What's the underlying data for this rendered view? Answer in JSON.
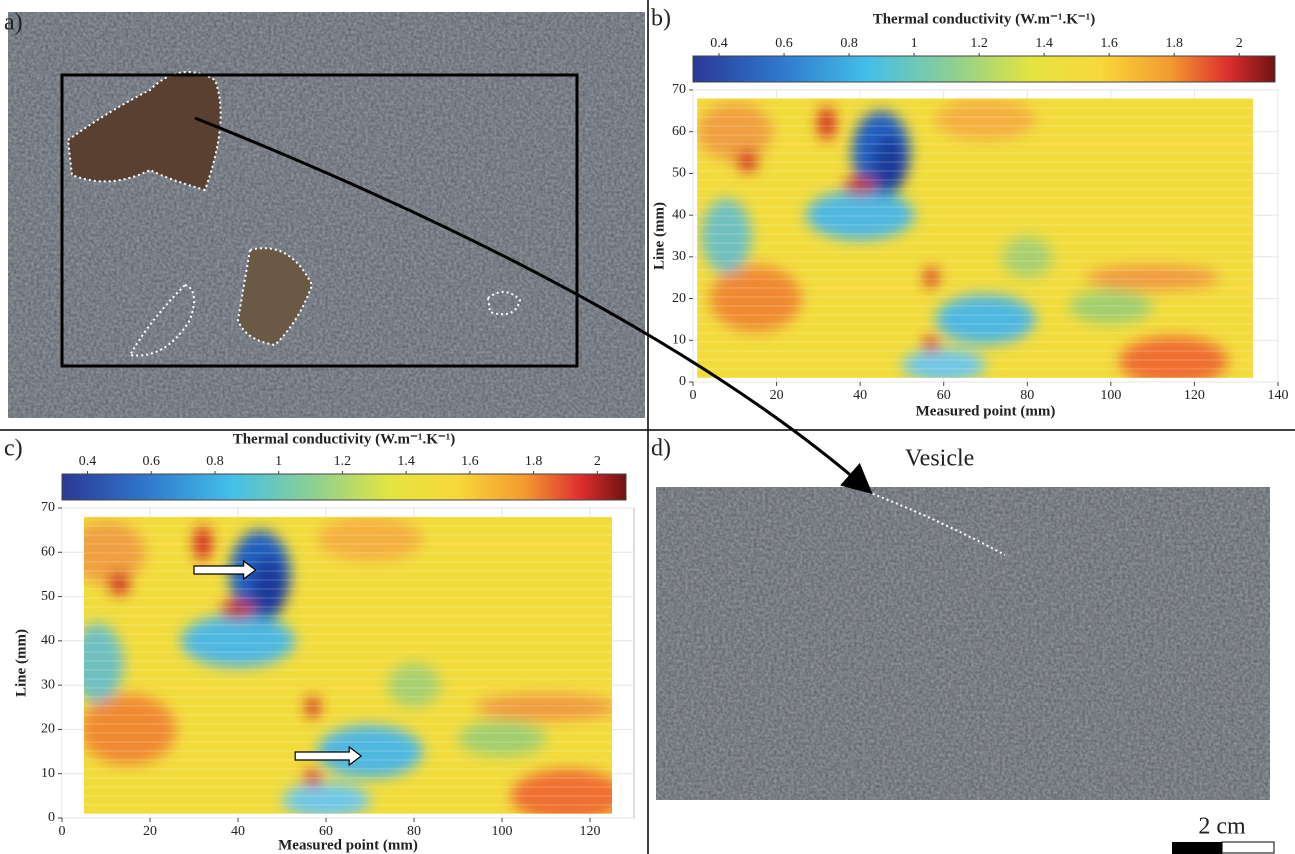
{
  "panels": [
    "a)",
    "b)",
    "c)",
    "d)"
  ],
  "annotations": {
    "vesicle": "Vesicle",
    "scale_bar": "2 cm"
  },
  "chart_data": [
    {
      "type": "heatmap",
      "colorbar_title": "Thermal conductivity (W.m⁻¹.K⁻¹)",
      "colorbar_lim": [
        0.32,
        2.11
      ],
      "colorbar_ticks": [
        0.4,
        0.6,
        0.8,
        1,
        1.2,
        1.4,
        1.6,
        1.8,
        2
      ],
      "xlabel": "Measured point (mm)",
      "ylabel": "Line (mm)",
      "xlim": [
        0,
        140
      ],
      "xticks": [
        0,
        20,
        40,
        60,
        80,
        100,
        120,
        140
      ],
      "ylim": [
        0,
        70
      ],
      "yticks": [
        0,
        10,
        20,
        30,
        40,
        50,
        60,
        70
      ],
      "grid": true
    },
    {
      "type": "heatmap",
      "colorbar_title": "Thermal conductivity (W.m⁻¹.K⁻¹)",
      "colorbar_lim": [
        0.32,
        2.09
      ],
      "colorbar_ticks": [
        0.4,
        0.6,
        0.8,
        1,
        1.2,
        1.4,
        1.6,
        1.8,
        2
      ],
      "xlabel": "Measured point (mm)",
      "ylabel": "Line (mm)",
      "xlim": [
        0,
        130
      ],
      "xticks": [
        0,
        20,
        40,
        60,
        80,
        100,
        120
      ],
      "ylim": [
        0,
        70
      ],
      "yticks": [
        0,
        10,
        20,
        30,
        40,
        50,
        60,
        70
      ],
      "grid": true
    }
  ]
}
